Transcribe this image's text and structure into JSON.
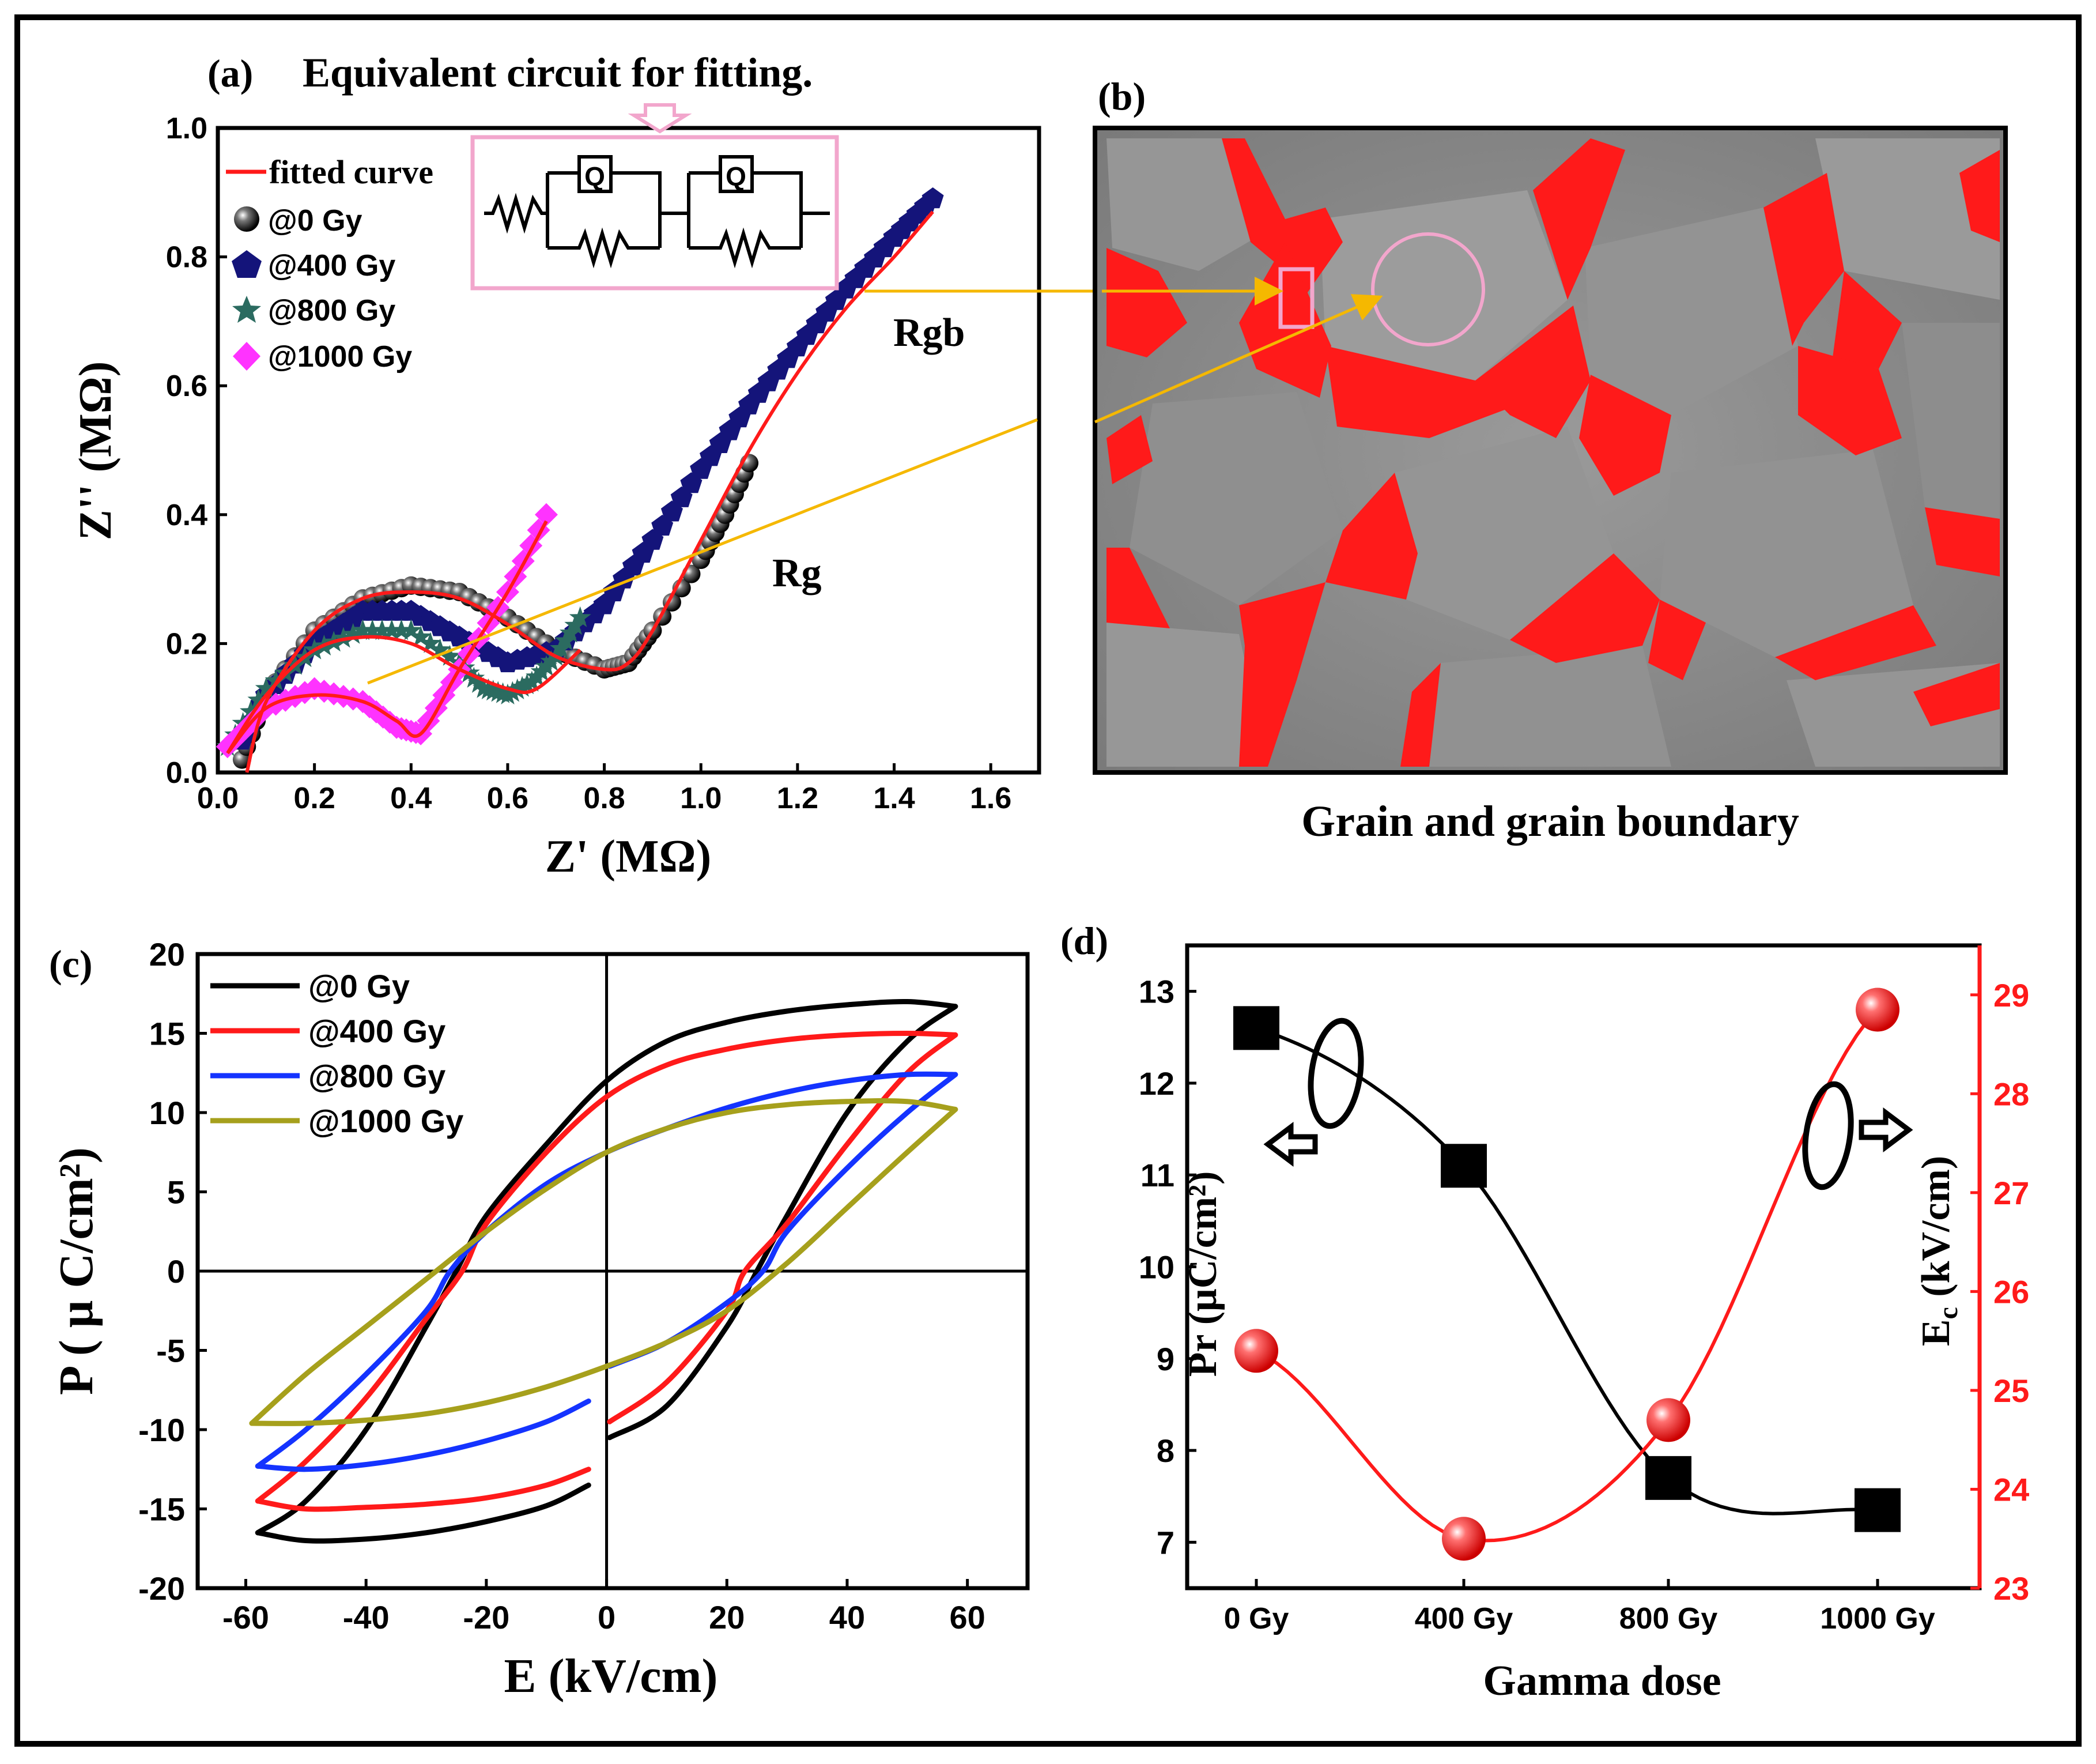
{
  "colors": {
    "black": "#000000",
    "red": "#ff1a1a",
    "blue": "#1433ff",
    "olive": "#a6a01c",
    "navy": "#14147a",
    "teal": "#2b6b60",
    "magenta": "#ff33ff",
    "pink": "#f2a6cc",
    "gold": "#f5b800",
    "grain_gray": "#8a8a8a"
  },
  "panel_a": {
    "label": "(a)",
    "title": "Equivalent circuit for fitting.",
    "circuit_element_label": "Q",
    "annotation_rgb": "Rgb",
    "annotation_rg": "Rg",
    "legend": [
      "fitted curve",
      "@0 Gy",
      "@400 Gy",
      "@800 Gy",
      "@1000 Gy"
    ]
  },
  "panel_b": {
    "label": "(b)",
    "caption": "Grain and grain boundary"
  },
  "panel_c": {
    "label": "(c)",
    "legend": [
      "@0 Gy",
      "@400 Gy",
      "@800 Gy",
      "@1000 Gy"
    ]
  },
  "panel_d": {
    "label": "(d)"
  },
  "chart_data": [
    {
      "id": "a",
      "type": "scatter",
      "title": "Equivalent circuit for fitting.",
      "xlabel": "Z' (MΩ)",
      "ylabel": "Z'' (MΩ)",
      "xlim": [
        0.0,
        1.7
      ],
      "ylim": [
        0.0,
        1.0
      ],
      "xticks": [
        "0.0",
        "0.2",
        "0.4",
        "0.6",
        "0.8",
        "1.0",
        "1.2",
        "1.4",
        "1.6"
      ],
      "yticks": [
        "0.0",
        "0.2",
        "0.4",
        "0.6",
        "0.8",
        "1.0"
      ],
      "series": [
        {
          "name": "@0 Gy",
          "marker": "sphere",
          "color": "#000000",
          "x": [
            0.05,
            0.1,
            0.2,
            0.3,
            0.4,
            0.5,
            0.6,
            0.7,
            0.8,
            0.85,
            0.9,
            1.0,
            1.05,
            1.1
          ],
          "y": [
            0.02,
            0.12,
            0.22,
            0.27,
            0.29,
            0.28,
            0.24,
            0.19,
            0.16,
            0.17,
            0.22,
            0.33,
            0.4,
            0.48
          ]
        },
        {
          "name": "@400 Gy",
          "marker": "pentagon",
          "color": "#14147a",
          "x": [
            0.05,
            0.1,
            0.2,
            0.3,
            0.4,
            0.5,
            0.6,
            0.7,
            0.8,
            0.9,
            1.0,
            1.1,
            1.2,
            1.3,
            1.4,
            1.48
          ],
          "y": [
            0.05,
            0.12,
            0.2,
            0.25,
            0.25,
            0.21,
            0.17,
            0.19,
            0.26,
            0.36,
            0.47,
            0.57,
            0.66,
            0.75,
            0.83,
            0.89
          ]
        },
        {
          "name": "@800 Gy",
          "marker": "star",
          "color": "#2b6b60",
          "x": [
            0.02,
            0.1,
            0.2,
            0.3,
            0.4,
            0.5,
            0.55,
            0.6,
            0.65,
            0.7,
            0.75
          ],
          "y": [
            0.04,
            0.13,
            0.19,
            0.22,
            0.22,
            0.17,
            0.13,
            0.12,
            0.14,
            0.18,
            0.24
          ]
        },
        {
          "name": "@1000 Gy",
          "marker": "diamond",
          "color": "#ff33ff",
          "x": [
            0.02,
            0.1,
            0.2,
            0.3,
            0.37,
            0.42,
            0.5,
            0.6,
            0.68
          ],
          "y": [
            0.04,
            0.1,
            0.13,
            0.11,
            0.07,
            0.06,
            0.16,
            0.28,
            0.4
          ]
        }
      ],
      "fitted_curve": {
        "name": "fitted curve",
        "color": "#ff1a1a",
        "curves": [
          {
            "x": [
              0.06,
              0.1,
              0.2,
              0.3,
              0.4,
              0.5,
              0.6,
              0.7,
              0.8,
              0.85,
              0.9,
              1.0,
              1.1,
              1.2,
              1.3,
              1.4,
              1.48
            ],
            "y": [
              0.0,
              0.11,
              0.22,
              0.27,
              0.28,
              0.27,
              0.23,
              0.18,
              0.16,
              0.17,
              0.22,
              0.36,
              0.5,
              0.62,
              0.72,
              0.8,
              0.87
            ]
          },
          {
            "x": [
              0.02,
              0.1,
              0.2,
              0.3,
              0.4,
              0.5,
              0.6,
              0.66,
              0.75
            ],
            "y": [
              0.03,
              0.12,
              0.19,
              0.21,
              0.2,
              0.16,
              0.13,
              0.13,
              0.19
            ]
          },
          {
            "x": [
              0.02,
              0.1,
              0.2,
              0.3,
              0.37,
              0.42,
              0.5,
              0.6,
              0.68
            ],
            "y": [
              0.03,
              0.1,
              0.12,
              0.11,
              0.08,
              0.06,
              0.16,
              0.28,
              0.39
            ]
          }
        ]
      }
    },
    {
      "id": "c",
      "type": "line",
      "xlabel": "E (kV/cm)",
      "ylabel": "P ( μ C/cm²)",
      "xlim": [
        -68,
        70
      ],
      "ylim": [
        -20,
        20
      ],
      "xticks": [
        -60,
        -40,
        -20,
        0,
        20,
        40,
        60
      ],
      "yticks": [
        -20,
        -15,
        -10,
        -5,
        0,
        5,
        10,
        15,
        20
      ],
      "series": [
        {
          "name": "@0 Gy",
          "color": "#000000",
          "upper": {
            "x": [
              -3,
              -10,
              -20,
              -30,
              -40,
              -50,
              -58
            ],
            "y": [
              -13.5,
              -14.8,
              -15.8,
              -16.5,
              -16.9,
              -17.0,
              -16.5
            ]
          },
          "lower": {
            "x": [
              -58,
              -50,
              -40,
              -30,
              -25,
              -20,
              -10,
              0,
              10,
              20,
              30,
              40,
              50,
              58
            ],
            "y": [
              -16.5,
              -14.5,
              -10.0,
              -3.5,
              0.0,
              3.5,
              8.0,
              12.0,
              14.5,
              15.7,
              16.4,
              16.8,
              17.0,
              16.7
            ]
          },
          "return": {
            "x": [
              58,
              50,
              40,
              30,
              25,
              20,
              10,
              0.5
            ],
            "y": [
              16.7,
              14.5,
              10.0,
              3.5,
              0.0,
              -3.5,
              -8.5,
              -10.5
            ]
          }
        },
        {
          "name": "@400 Gy",
          "color": "#ff1a1a",
          "upper": {
            "x": [
              -3,
              -10,
              -20,
              -30,
              -40,
              -50,
              -58
            ],
            "y": [
              -12.5,
              -13.5,
              -14.3,
              -14.7,
              -14.9,
              -15.0,
              -14.5
            ]
          },
          "lower": {
            "x": [
              -58,
              -50,
              -40,
              -30,
              -24,
              -20,
              -10,
              0,
              10,
              20,
              30,
              40,
              50,
              58
            ],
            "y": [
              -14.5,
              -12.0,
              -8.0,
              -3.0,
              0.0,
              3.0,
              7.5,
              11.0,
              13.0,
              14.0,
              14.6,
              14.9,
              15.0,
              14.9
            ]
          },
          "return": {
            "x": [
              58,
              50,
              40,
              30,
              23,
              20,
              10,
              0.5
            ],
            "y": [
              14.9,
              12.5,
              8.0,
              3.0,
              0.0,
              -2.5,
              -7.0,
              -9.5
            ]
          }
        },
        {
          "name": "@800 Gy",
          "color": "#1433ff",
          "upper": {
            "x": [
              -3,
              -10,
              -20,
              -30,
              -40,
              -50,
              -58
            ],
            "y": [
              -8.2,
              -9.5,
              -10.7,
              -11.6,
              -12.2,
              -12.5,
              -12.3
            ]
          },
          "lower": {
            "x": [
              -58,
              -50,
              -40,
              -30,
              -26,
              -20,
              -10,
              0,
              10,
              20,
              30,
              40,
              50,
              58
            ],
            "y": [
              -12.3,
              -10.0,
              -6.5,
              -2.5,
              0.0,
              2.5,
              5.5,
              7.5,
              9.0,
              10.3,
              11.3,
              12.0,
              12.4,
              12.4
            ]
          },
          "return": {
            "x": [
              58,
              50,
              40,
              30,
              26,
              20,
              10,
              0.5
            ],
            "y": [
              12.4,
              10.0,
              6.5,
              2.5,
              0.0,
              -2.0,
              -4.5,
              -6.0
            ]
          }
        },
        {
          "name": "@1000 Gy",
          "color": "#a6a01c",
          "upper": {
            "x": [
              -59,
              -50,
              -40,
              -30,
              -20,
              -10,
              0,
              10,
              20,
              30,
              40,
              50,
              58
            ],
            "y": [
              -9.6,
              -6.5,
              -3.5,
              -0.5,
              2.5,
              5.2,
              7.5,
              9.0,
              10.0,
              10.5,
              10.7,
              10.7,
              10.2
            ]
          },
          "lower": {
            "x": [
              58,
              50,
              40,
              30,
              20,
              10,
              0,
              -10,
              -20,
              -30,
              -40,
              -50,
              -59
            ],
            "y": [
              10.2,
              7.5,
              4.0,
              0.5,
              -2.5,
              -4.5,
              -6.0,
              -7.3,
              -8.3,
              -9.0,
              -9.4,
              -9.6,
              -9.6
            ]
          }
        }
      ]
    },
    {
      "id": "d",
      "type": "line",
      "xlabel": "Gamma dose",
      "categories": [
        "0 Gy",
        "400 Gy",
        "800 Gy",
        "1000 Gy"
      ],
      "left_axis": {
        "label": "Pr (μC/cm²)",
        "ylim": [
          6.5,
          13.5
        ],
        "ticks": [
          7,
          8,
          9,
          10,
          11,
          12,
          13
        ]
      },
      "right_axis": {
        "label": "Ec (kV/cm)",
        "ylim": [
          23,
          29.5
        ],
        "ticks": [
          23,
          24,
          25,
          26,
          27,
          28,
          29
        ]
      },
      "series": [
        {
          "name": "Pr",
          "axis": "left",
          "marker": "square",
          "color": "#000000",
          "values": [
            12.6,
            11.1,
            7.7,
            7.35
          ]
        },
        {
          "name": "Ec",
          "axis": "right",
          "marker": "sphere",
          "color": "#ff1a1a",
          "values": [
            25.4,
            23.5,
            24.7,
            28.85
          ]
        }
      ]
    }
  ]
}
